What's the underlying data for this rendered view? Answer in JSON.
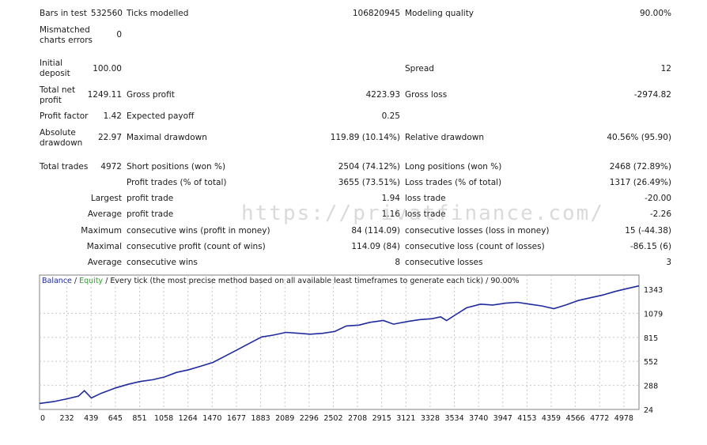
{
  "report": {
    "bars_in_test": {
      "label": "Bars in test",
      "value": "532560"
    },
    "ticks_modelled": {
      "label": "Ticks modelled",
      "value": "106820945"
    },
    "modeling_quality": {
      "label": "Modeling quality",
      "value": "90.00%"
    },
    "mismatched": {
      "label_1": "Mismatched",
      "label_2": "charts errors",
      "value": "0"
    },
    "initial_deposit": {
      "label_1": "Initial",
      "label_2": "deposit",
      "value": "100.00"
    },
    "spread": {
      "label": "Spread",
      "value": "12"
    },
    "total_net_profit": {
      "label_1": "Total net",
      "label_2": "profit",
      "value": "1249.11"
    },
    "gross_profit": {
      "label": "Gross profit",
      "value": "4223.93"
    },
    "gross_loss": {
      "label": "Gross loss",
      "value": "-2974.82"
    },
    "profit_factor": {
      "label": "Profit factor",
      "value": "1.42"
    },
    "expected_payoff": {
      "label": "Expected payoff",
      "value": "0.25"
    },
    "absolute_drawdown": {
      "label_1": "Absolute",
      "label_2": "drawdown",
      "value": "22.97"
    },
    "maximal_drawdown": {
      "label": "Maximal drawdown",
      "value": "119.89 (10.14%)"
    },
    "relative_drawdown": {
      "label": "Relative drawdown",
      "value": "40.56% (95.90)"
    },
    "total_trades": {
      "label": "Total trades",
      "value": "4972"
    },
    "short_positions": {
      "label": "Short positions (won %)",
      "value": "2504 (74.12%)"
    },
    "long_positions": {
      "label": "Long positions (won %)",
      "value": "2468 (72.89%)"
    },
    "profit_trades": {
      "label": "Profit trades (% of total)",
      "value": "3655 (73.51%)"
    },
    "loss_trades": {
      "label": "Loss trades (% of total)",
      "value": "1317 (26.49%)"
    },
    "largest": {
      "prefix": "Largest",
      "profit_label": "profit trade",
      "profit_value": "1.94",
      "loss_label": "loss trade",
      "loss_value": "-20.00"
    },
    "average": {
      "prefix": "Average",
      "profit_label": "profit trade",
      "profit_value": "1.16",
      "loss_label": "loss trade",
      "loss_value": "-2.26"
    },
    "maximum": {
      "prefix": "Maximum",
      "wins_label": "consecutive wins (profit in money)",
      "wins_value": "84 (114.09)",
      "losses_label": "consecutive losses (loss in money)",
      "losses_value": "15 (-44.38)"
    },
    "maximal": {
      "prefix": "Maximal",
      "profit_label": "consecutive profit (count of wins)",
      "profit_value": "114.09 (84)",
      "loss_label": "consecutive loss (count of losses)",
      "loss_value": "-86.15 (6)"
    },
    "average_consec": {
      "prefix": "Average",
      "wins_label": "consecutive wins",
      "wins_value": "8",
      "losses_label": "consecutive losses",
      "losses_value": "3"
    }
  },
  "watermark": "https://privatfinance.com/",
  "chart_legend": {
    "balance": "Balance",
    "sep1": " / ",
    "equity": "Equity",
    "rest": " / Every tick (the most precise method based on all available least timeframes to generate each tick) / 90.00%"
  },
  "colors": {
    "balance": "#1f2a9e",
    "equity": "#2e9e2e",
    "grid": "#c8c8c8"
  },
  "chart_data": {
    "type": "line",
    "x_ticks": [
      "0",
      "232",
      "439",
      "645",
      "851",
      "1058",
      "1264",
      "1470",
      "1677",
      "1883",
      "2089",
      "2296",
      "2502",
      "2708",
      "2915",
      "3121",
      "3328",
      "3534",
      "3740",
      "3947",
      "4153",
      "4359",
      "4566",
      "4772",
      "4978"
    ],
    "y_ticks": [
      "1343",
      "1079",
      "815",
      "552",
      "288",
      "24"
    ],
    "ylim": [
      24,
      1343
    ],
    "xlim": [
      0,
      5081
    ],
    "series": [
      {
        "name": "Balance",
        "x": [
          0,
          120,
          232,
          330,
          380,
          439,
          520,
          645,
          750,
          851,
          960,
          1058,
          1160,
          1264,
          1370,
          1470,
          1560,
          1677,
          1780,
          1883,
          1980,
          2089,
          2200,
          2296,
          2400,
          2502,
          2600,
          2708,
          2800,
          2915,
          3000,
          3121,
          3220,
          3328,
          3400,
          3450,
          3534,
          3620,
          3740,
          3840,
          3947,
          4050,
          4153,
          4260,
          4359,
          4460,
          4566,
          4670,
          4772,
          4880,
          4978,
          5081
        ],
        "values": [
          90,
          110,
          140,
          170,
          230,
          150,
          200,
          260,
          300,
          330,
          350,
          380,
          430,
          460,
          500,
          540,
          600,
          680,
          750,
          820,
          840,
          870,
          860,
          850,
          860,
          880,
          940,
          950,
          980,
          1000,
          960,
          990,
          1010,
          1020,
          1040,
          1000,
          1070,
          1140,
          1180,
          1170,
          1190,
          1200,
          1180,
          1160,
          1130,
          1170,
          1220,
          1250,
          1280,
          1320,
          1350,
          1380
        ]
      }
    ]
  }
}
